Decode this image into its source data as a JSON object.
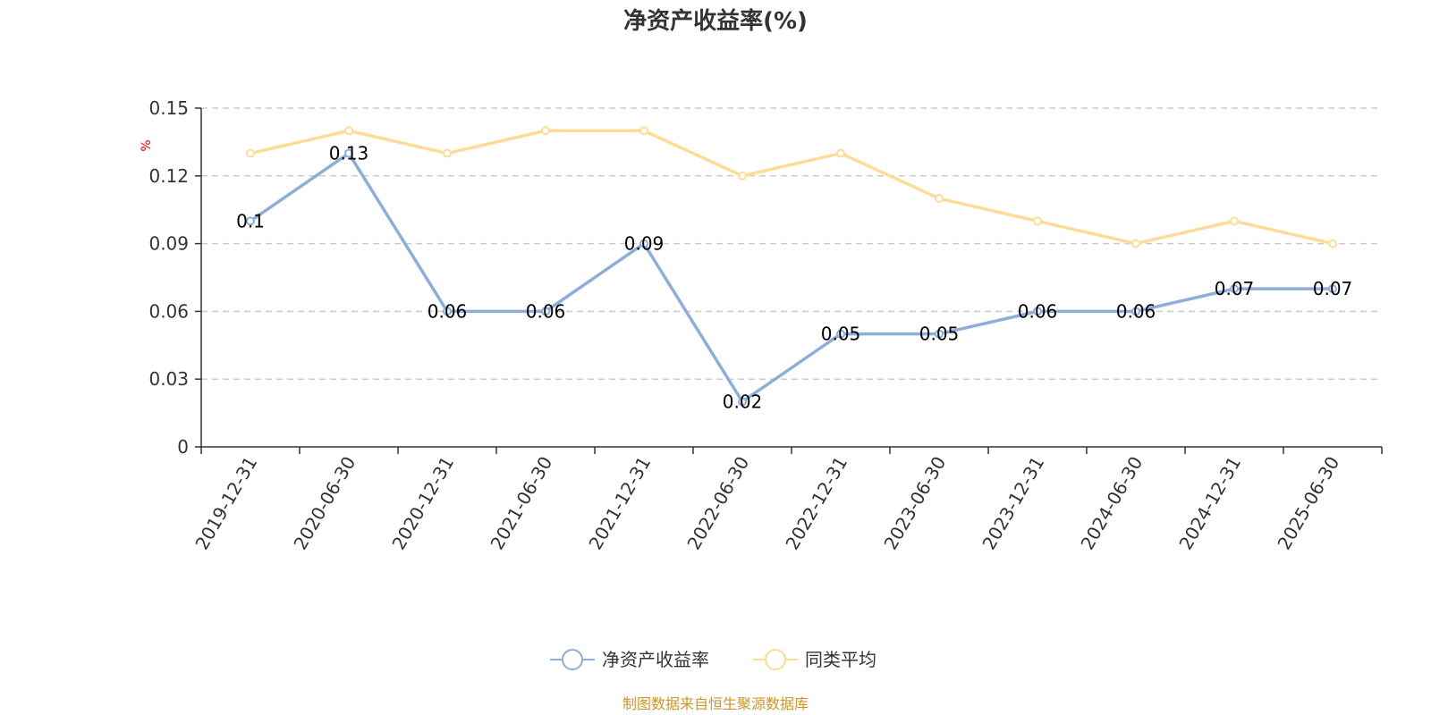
{
  "chart_data": {
    "type": "line",
    "title": "净资产收益率(%)",
    "ylabel": "%",
    "ylim": [
      0,
      0.15
    ],
    "yticks": [
      "0",
      "0.03",
      "0.06",
      "0.09",
      "0.12",
      "0.15"
    ],
    "categories": [
      "2019-12-31",
      "2020-06-30",
      "2020-12-31",
      "2021-06-30",
      "2021-12-31",
      "2022-06-30",
      "2022-12-31",
      "2023-06-30",
      "2023-12-31",
      "2024-06-30",
      "2024-12-31",
      "2025-06-30"
    ],
    "series": [
      {
        "name": "净资产收益率",
        "color": "#8eadd9",
        "values": [
          0.1,
          0.13,
          0.06,
          0.06,
          0.09,
          0.02,
          0.05,
          0.05,
          0.06,
          0.06,
          0.07,
          0.07
        ],
        "labels": [
          "0.1",
          "0.13",
          "0.06",
          "0.06",
          "0.09",
          "0.02",
          "0.05",
          "0.05",
          "0.06",
          "0.06",
          "0.07",
          "0.07"
        ]
      },
      {
        "name": "同类平均",
        "color": "#fddc97",
        "values": [
          0.13,
          0.14,
          0.13,
          0.14,
          0.14,
          0.12,
          0.13,
          0.11,
          0.1,
          0.09,
          0.1,
          0.09
        ]
      }
    ],
    "grid": "horizontal-dashed",
    "legend_position": "bottom-center"
  },
  "footer": {
    "source": "制图数据来自恒生聚源数据库"
  }
}
